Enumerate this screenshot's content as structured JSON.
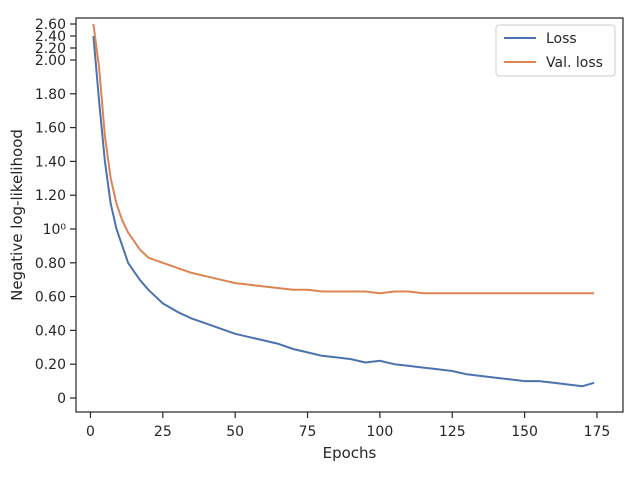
{
  "chart_data": {
    "type": "line",
    "xlabel": "Epochs",
    "ylabel": "Negative log-likelihood",
    "xlim": [
      -5,
      184
    ],
    "ylim": [
      -0.08,
      2.64
    ],
    "x_ticks": [
      0,
      25,
      50,
      75,
      100,
      125,
      150,
      175
    ],
    "x_tick_labels": [
      "0",
      "25",
      "50",
      "75",
      "100",
      "125",
      "150",
      "175"
    ],
    "y_ticks": [
      0,
      0.2,
      0.4,
      0.6,
      0.8,
      1.0,
      1.2,
      1.4,
      1.6,
      1.8,
      2.0,
      2.2,
      2.4,
      2.6
    ],
    "y_tick_labels": [
      "0",
      "0.20",
      "0.40",
      "0.60",
      "0.80",
      "10⁰",
      "1.20",
      "1.40",
      "1.60",
      "1.80",
      "2.00",
      "2.20",
      "2.40",
      "2.60"
    ],
    "y_scale": "nonlinear (compressed above 2.0)",
    "legend_position": "top-right",
    "grid": false,
    "series": [
      {
        "name": "Loss",
        "color": "#4c72b0",
        "x": [
          1,
          3,
          5,
          7,
          9,
          11,
          13,
          15,
          17,
          20,
          25,
          30,
          35,
          40,
          45,
          50,
          55,
          60,
          65,
          70,
          75,
          80,
          85,
          90,
          95,
          100,
          105,
          110,
          115,
          120,
          125,
          130,
          135,
          140,
          145,
          150,
          155,
          160,
          165,
          170,
          174
        ],
        "values": [
          2.4,
          1.75,
          1.4,
          1.15,
          1.0,
          0.9,
          0.8,
          0.75,
          0.7,
          0.64,
          0.56,
          0.51,
          0.47,
          0.44,
          0.41,
          0.38,
          0.36,
          0.34,
          0.32,
          0.29,
          0.27,
          0.25,
          0.24,
          0.23,
          0.21,
          0.22,
          0.2,
          0.19,
          0.18,
          0.17,
          0.16,
          0.14,
          0.13,
          0.12,
          0.11,
          0.1,
          0.1,
          0.09,
          0.08,
          0.07,
          0.09
        ]
      },
      {
        "name": "Val. loss",
        "color": "#dd8452",
        "x": [
          1,
          3,
          5,
          7,
          9,
          11,
          13,
          15,
          17,
          20,
          25,
          30,
          35,
          40,
          45,
          50,
          55,
          60,
          65,
          70,
          75,
          80,
          85,
          90,
          95,
          100,
          105,
          110,
          115,
          120,
          125,
          130,
          135,
          140,
          145,
          150,
          155,
          160,
          165,
          170,
          174
        ],
        "values": [
          2.6,
          1.95,
          1.55,
          1.3,
          1.15,
          1.05,
          0.98,
          0.93,
          0.88,
          0.83,
          0.8,
          0.77,
          0.74,
          0.72,
          0.7,
          0.68,
          0.67,
          0.66,
          0.65,
          0.64,
          0.64,
          0.63,
          0.63,
          0.63,
          0.63,
          0.62,
          0.63,
          0.63,
          0.62,
          0.62,
          0.62,
          0.62,
          0.62,
          0.62,
          0.62,
          0.62,
          0.62,
          0.62,
          0.62,
          0.62,
          0.62
        ]
      }
    ]
  }
}
